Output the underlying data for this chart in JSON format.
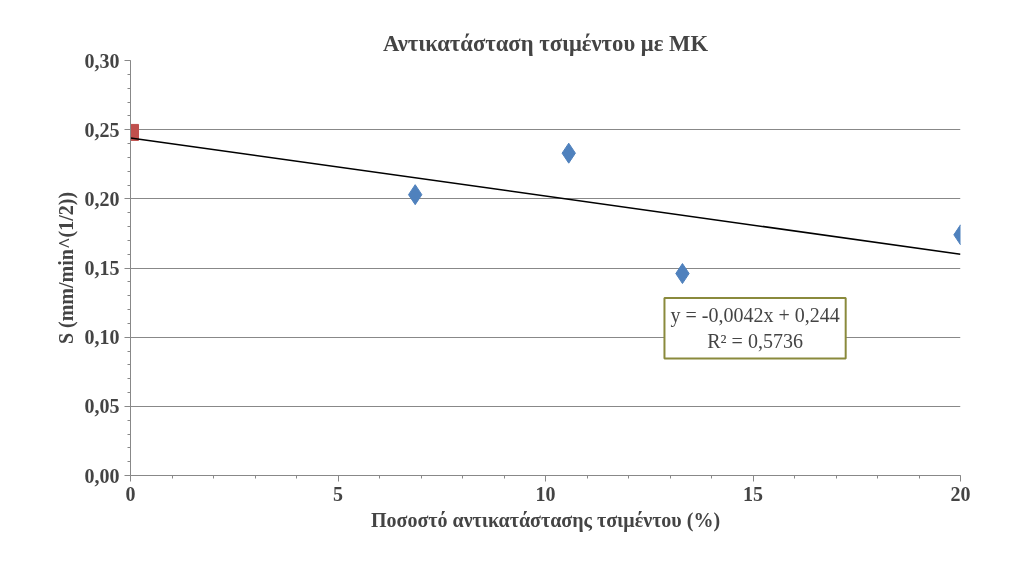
{
  "chart_data": {
    "type": "scatter",
    "title": "Αντικατάσταση τσιμέντου με ΜΚ",
    "xlabel": "Ποσοστό αντικατάστασης τσιμέντου (%)",
    "ylabel": "S (mm/min^(1/2))",
    "series": [
      {
        "marker": "square",
        "color": "#c0504d",
        "x": [
          0
        ],
        "values": [
          0.248
        ]
      },
      {
        "marker": "diamond",
        "color": "#4f81bd",
        "x": [
          6.86,
          10.56,
          13.3,
          20
        ],
        "values": [
          0.203,
          0.233,
          0.146,
          0.174
        ]
      },
      {
        "type": "line",
        "marker": "none",
        "color": "#000000",
        "x": [
          0,
          20
        ],
        "values": [
          0.244,
          0.16
        ]
      }
    ],
    "xlim": [
      0,
      20
    ],
    "xticks": [
      0,
      5,
      10,
      15,
      20
    ],
    "ylim": [
      0,
      0.3
    ],
    "yticks": [
      {
        "value": 0,
        "label": "0,00"
      },
      {
        "value": 0.05,
        "label": "0,05"
      },
      {
        "value": 0.1,
        "label": "0,10"
      },
      {
        "value": 0.15,
        "label": "0,15"
      },
      {
        "value": 0.2,
        "label": "0,20"
      },
      {
        "value": 0.25,
        "label": "0,25"
      },
      {
        "value": 0.3,
        "label": "0,30"
      }
    ],
    "grid": "y",
    "annotations": [
      "y = -0,0042x + 0,244",
      "R² = 0,5736"
    ]
  }
}
